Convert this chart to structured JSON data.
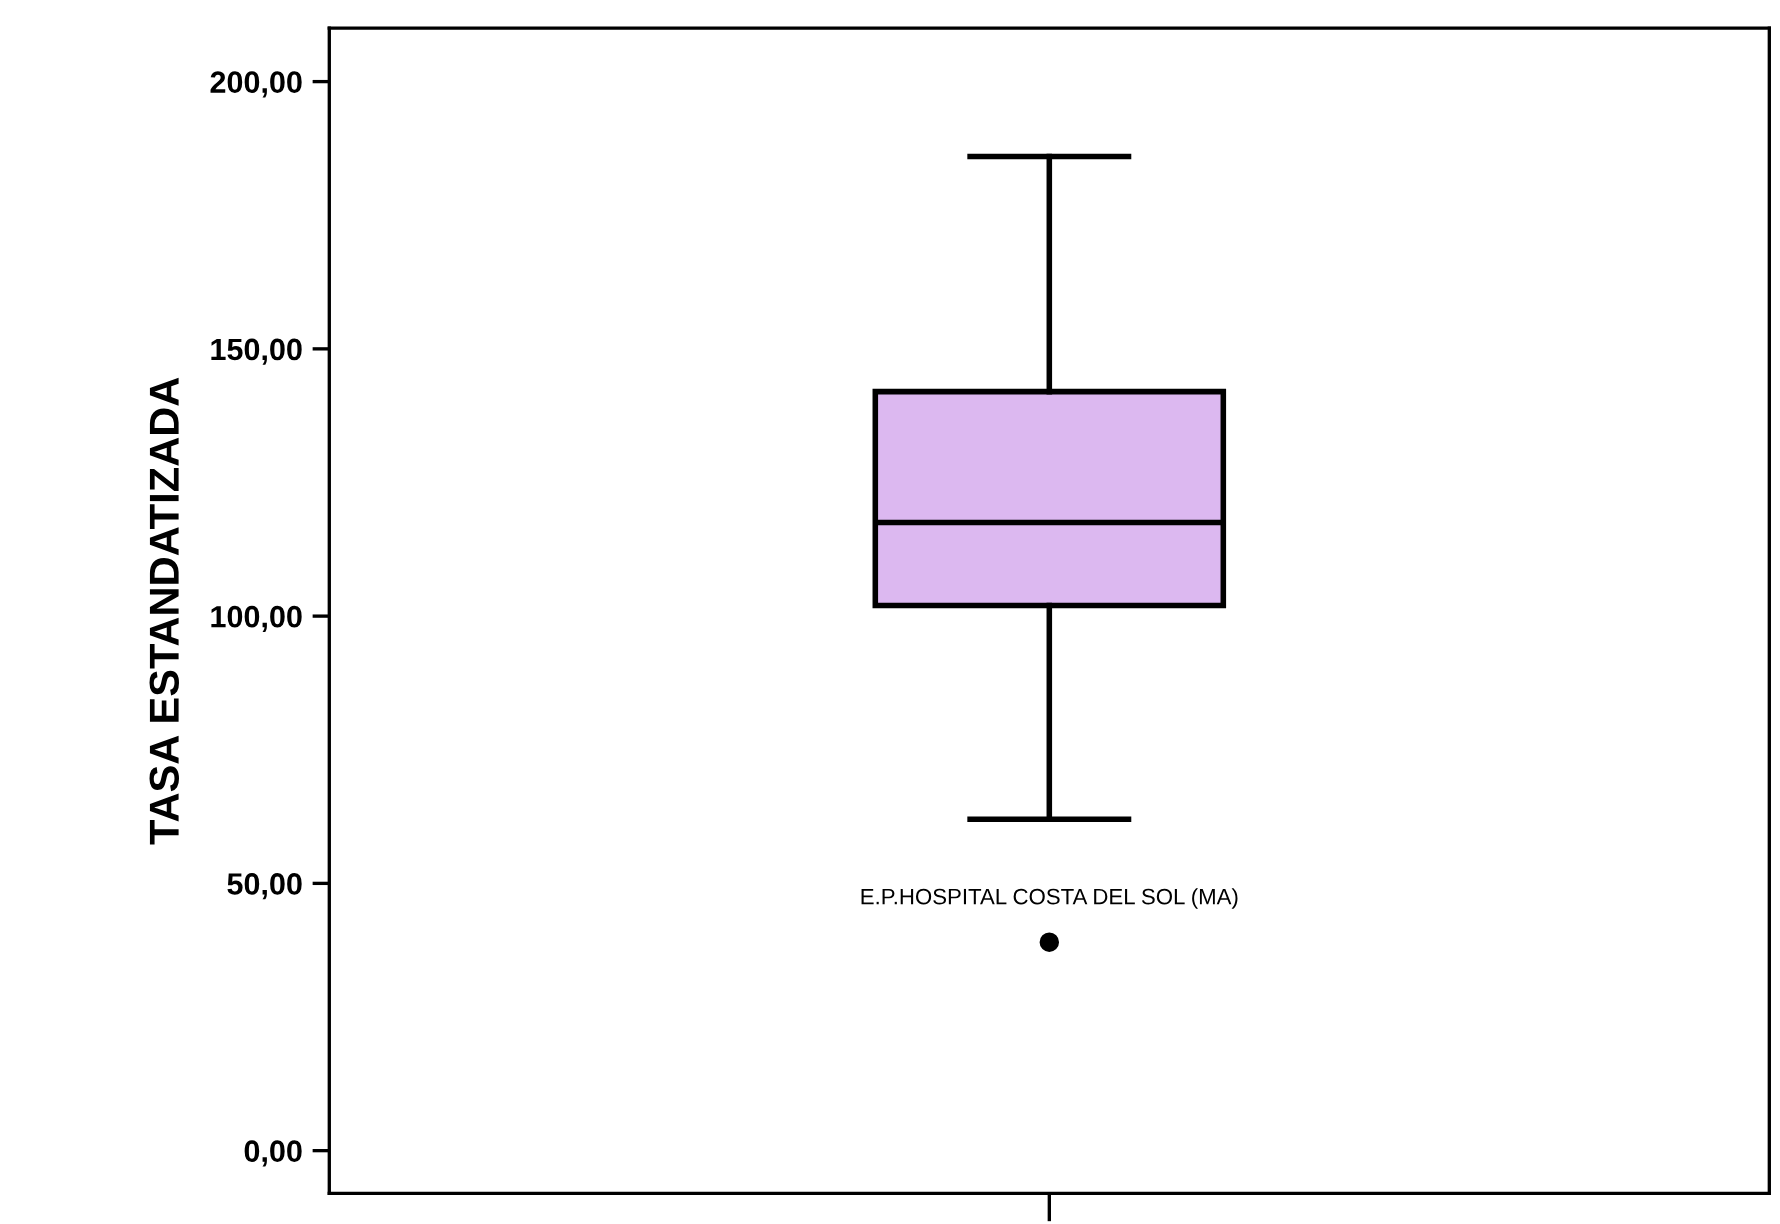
{
  "chart_data": {
    "type": "box",
    "ylabel": "TASA ESTANDATIZADA",
    "categories": [
      null
    ],
    "boxes": [
      {
        "low": 62,
        "q1": 102,
        "median": 117.5,
        "q3": 142,
        "high": 186,
        "outliers": [
          39
        ]
      }
    ],
    "color": "#dcb8f0",
    "ylim": [
      -8,
      210
    ],
    "yticks": [
      {
        "value": 0,
        "label": "0,00"
      },
      {
        "value": 50,
        "label": "50,00"
      },
      {
        "value": 100,
        "label": "100,00"
      },
      {
        "value": 150,
        "label": "150,00"
      },
      {
        "value": 200,
        "label": "200,00"
      }
    ],
    "annotations": [
      "E.P.HOSPITAL COSTA DEL SOL (MA)"
    ],
    "grid": false,
    "legend": false
  }
}
